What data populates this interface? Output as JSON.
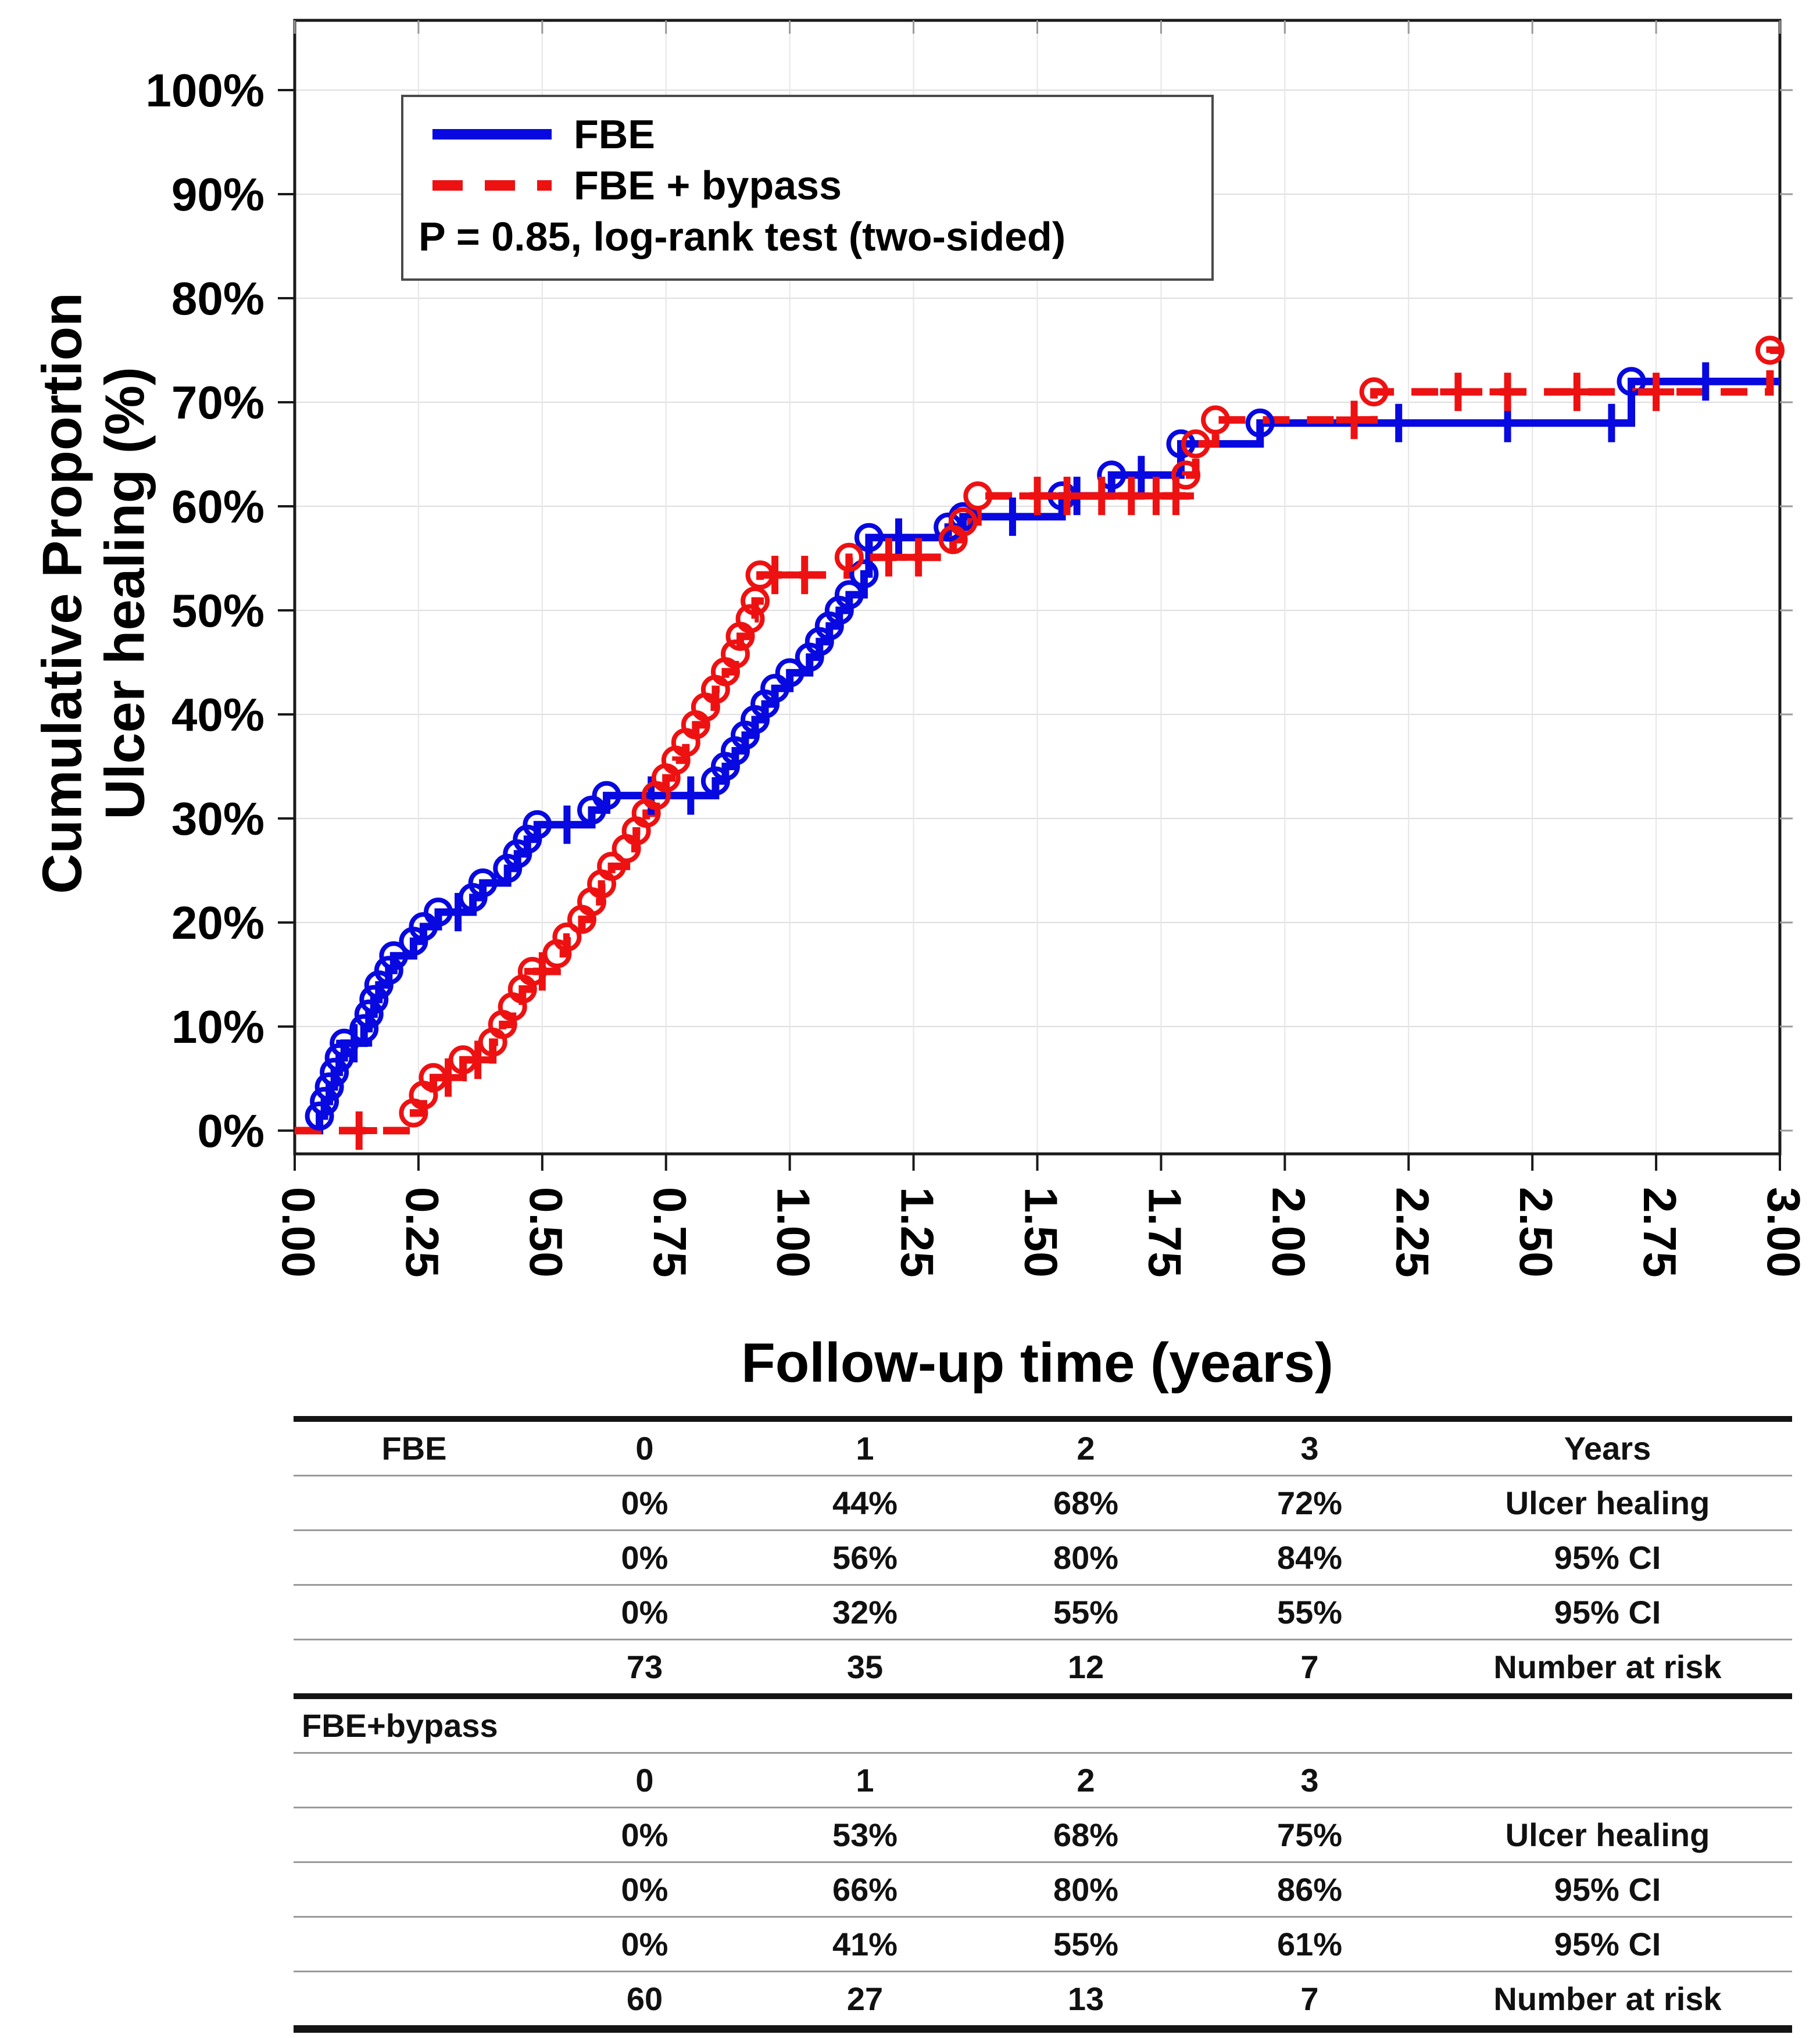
{
  "chart_data": {
    "type": "line",
    "subtype": "kaplan-meier-step",
    "title": "",
    "xlabel": "Follow-up time (years)",
    "ylabel": "Cumulative Proportion Ulcer healing (%)",
    "ylabel_lines": [
      "Cumulative Proportion",
      "Ulcer healing (%)"
    ],
    "xlim": [
      0,
      3
    ],
    "ylim": [
      0,
      100
    ],
    "grid": "on",
    "legend_position": "top-left-inside",
    "annotation": "P = 0.85, log-rank test (two-sided)",
    "x_ticks": [
      "0.00",
      "0.25",
      "0.50",
      "0.75",
      "1.00",
      "1.25",
      "1.50",
      "1.75",
      "2.00",
      "2.25",
      "2.50",
      "2.75",
      "3.00"
    ],
    "y_ticks": [
      "0%",
      "10%",
      "20%",
      "30%",
      "40%",
      "50%",
      "60%",
      "70%",
      "80%",
      "90%",
      "100%"
    ],
    "series": [
      {
        "name": "FBE",
        "color": "#0808e0",
        "style": "solid",
        "marker": "open-circle-events-plus-censors",
        "steps": [
          [
            0.05,
            1.4
          ],
          [
            0.06,
            2.8
          ],
          [
            0.07,
            4.2
          ],
          [
            0.08,
            5.6
          ],
          [
            0.09,
            7.0
          ],
          [
            0.1,
            8.4
          ],
          [
            0.14,
            9.8
          ],
          [
            0.15,
            11.2
          ],
          [
            0.16,
            12.6
          ],
          [
            0.17,
            14.0
          ],
          [
            0.19,
            15.4
          ],
          [
            0.2,
            16.8
          ],
          [
            0.24,
            18.2
          ],
          [
            0.26,
            19.6
          ],
          [
            0.29,
            21.0
          ],
          [
            0.36,
            22.4
          ],
          [
            0.38,
            23.8
          ],
          [
            0.43,
            25.2
          ],
          [
            0.45,
            26.6
          ],
          [
            0.47,
            28.0
          ],
          [
            0.49,
            29.4
          ],
          [
            0.6,
            30.8
          ],
          [
            0.63,
            32.2
          ],
          [
            0.85,
            33.6
          ],
          [
            0.87,
            35.0
          ],
          [
            0.89,
            36.5
          ],
          [
            0.91,
            38.0
          ],
          [
            0.93,
            39.5
          ],
          [
            0.95,
            41.0
          ],
          [
            0.97,
            42.5
          ],
          [
            1.0,
            44.0
          ],
          [
            1.04,
            45.5
          ],
          [
            1.06,
            47.0
          ],
          [
            1.08,
            48.5
          ],
          [
            1.1,
            50.0
          ],
          [
            1.12,
            51.5
          ],
          [
            1.15,
            53.5
          ],
          [
            1.16,
            57.0
          ],
          [
            1.32,
            58.0
          ],
          [
            1.35,
            59.0
          ],
          [
            1.55,
            61.0
          ],
          [
            1.65,
            63.0
          ],
          [
            1.79,
            66.0
          ],
          [
            1.95,
            68.0
          ],
          [
            2.7,
            72.0
          ]
        ],
        "censors": [
          [
            0.12,
            8.4
          ],
          [
            0.33,
            21.0
          ],
          [
            0.55,
            29.4
          ],
          [
            0.72,
            32.2
          ],
          [
            0.8,
            32.2
          ],
          [
            1.22,
            57.0
          ],
          [
            1.45,
            59.0
          ],
          [
            1.58,
            61.0
          ],
          [
            1.71,
            63.0
          ],
          [
            2.23,
            68.0
          ],
          [
            2.45,
            68.0
          ],
          [
            2.66,
            68.0
          ],
          [
            2.85,
            72.0
          ]
        ]
      },
      {
        "name": "FBE + bypass",
        "color": "#ee1111",
        "style": "dashed",
        "marker": "open-circle-events-plus-censors",
        "steps": [
          [
            0.24,
            1.7
          ],
          [
            0.26,
            3.4
          ],
          [
            0.28,
            5.1
          ],
          [
            0.34,
            6.8
          ],
          [
            0.4,
            8.5
          ],
          [
            0.42,
            10.2
          ],
          [
            0.44,
            11.9
          ],
          [
            0.46,
            13.6
          ],
          [
            0.48,
            15.3
          ],
          [
            0.53,
            17.0
          ],
          [
            0.55,
            18.6
          ],
          [
            0.58,
            20.3
          ],
          [
            0.6,
            22.0
          ],
          [
            0.62,
            23.7
          ],
          [
            0.64,
            25.4
          ],
          [
            0.67,
            27.1
          ],
          [
            0.69,
            28.8
          ],
          [
            0.71,
            30.5
          ],
          [
            0.73,
            32.2
          ],
          [
            0.75,
            33.9
          ],
          [
            0.77,
            35.6
          ],
          [
            0.79,
            37.3
          ],
          [
            0.81,
            39.0
          ],
          [
            0.83,
            40.7
          ],
          [
            0.85,
            42.4
          ],
          [
            0.87,
            44.1
          ],
          [
            0.89,
            45.8
          ],
          [
            0.9,
            47.5
          ],
          [
            0.92,
            49.2
          ],
          [
            0.93,
            50.9
          ],
          [
            0.94,
            53.4
          ],
          [
            1.12,
            55.1
          ],
          [
            1.33,
            56.8
          ],
          [
            1.35,
            58.5
          ],
          [
            1.38,
            61.0
          ],
          [
            1.8,
            63.0
          ],
          [
            1.82,
            66.0
          ],
          [
            1.86,
            68.3
          ],
          [
            2.18,
            71.0
          ],
          [
            2.98,
            75.0
          ]
        ],
        "censors": [
          [
            0.13,
            0.0
          ],
          [
            0.31,
            5.1
          ],
          [
            0.37,
            6.8
          ],
          [
            0.5,
            15.3
          ],
          [
            0.97,
            53.4
          ],
          [
            1.03,
            53.4
          ],
          [
            1.2,
            55.1
          ],
          [
            1.26,
            55.1
          ],
          [
            1.5,
            61.0
          ],
          [
            1.56,
            61.0
          ],
          [
            1.63,
            61.0
          ],
          [
            1.69,
            61.0
          ],
          [
            1.74,
            61.0
          ],
          [
            1.78,
            61.0
          ],
          [
            2.14,
            68.3
          ],
          [
            2.35,
            71.0
          ],
          [
            2.45,
            71.0
          ],
          [
            2.59,
            71.0
          ],
          [
            2.75,
            71.0
          ]
        ]
      }
    ]
  },
  "table": {
    "sections": [
      {
        "label": "FBE",
        "rows": [
          [
            "FBE",
            "0",
            "1",
            "2",
            "3",
            "Years"
          ],
          [
            "",
            "0%",
            "44%",
            "68%",
            "72%",
            "Ulcer healing"
          ],
          [
            "",
            "0%",
            "56%",
            "80%",
            "84%",
            "95% CI"
          ],
          [
            "",
            "0%",
            "32%",
            "55%",
            "55%",
            "95% CI"
          ],
          [
            "",
            "73",
            "35",
            "12",
            "7",
            "Number at risk"
          ]
        ]
      },
      {
        "label": "FBE+bypass",
        "rows": [
          [
            "FBE+bypass",
            "",
            "",
            "",
            "",
            ""
          ],
          [
            "",
            "0",
            "1",
            "2",
            "3",
            ""
          ],
          [
            "",
            "0%",
            "53%",
            "68%",
            "75%",
            "Ulcer healing"
          ],
          [
            "",
            "0%",
            "66%",
            "80%",
            "86%",
            "95% CI"
          ],
          [
            "",
            "0%",
            "41%",
            "55%",
            "61%",
            "95% CI"
          ],
          [
            "",
            "60",
            "27",
            "13",
            "7",
            "Number at risk"
          ]
        ]
      }
    ]
  }
}
